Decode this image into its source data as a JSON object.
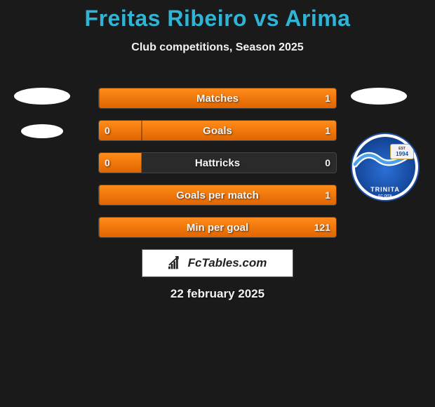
{
  "title": "Freitas Ribeiro vs Arima",
  "subtitle": "Club competitions, Season 2025",
  "date": "22 february 2025",
  "branding": {
    "text": "FcTables.com"
  },
  "badge": {
    "name": "TRINITA",
    "sub": "FC OITA",
    "est": "EST",
    "year": "1994"
  },
  "colors": {
    "background": "#1a1a1a",
    "title": "#2fb4d6",
    "bar_fill": "#ff8c1a",
    "bar_bg": "#2a2a2a",
    "bar_border": "#444444",
    "text": "#f5f5f5"
  },
  "chart": {
    "type": "diverging-bar",
    "rows": [
      {
        "label": "Matches",
        "left_val": "",
        "right_val": "1",
        "left_pct": 0,
        "right_pct": 100
      },
      {
        "label": "Goals",
        "left_val": "0",
        "right_val": "1",
        "left_pct": 18,
        "right_pct": 82
      },
      {
        "label": "Hattricks",
        "left_val": "0",
        "right_val": "0",
        "left_pct": 18,
        "right_pct": 0
      },
      {
        "label": "Goals per match",
        "left_val": "",
        "right_val": "1",
        "left_pct": 0,
        "right_pct": 100
      },
      {
        "label": "Min per goal",
        "left_val": "",
        "right_val": "121",
        "left_pct": 0,
        "right_pct": 100
      }
    ]
  }
}
